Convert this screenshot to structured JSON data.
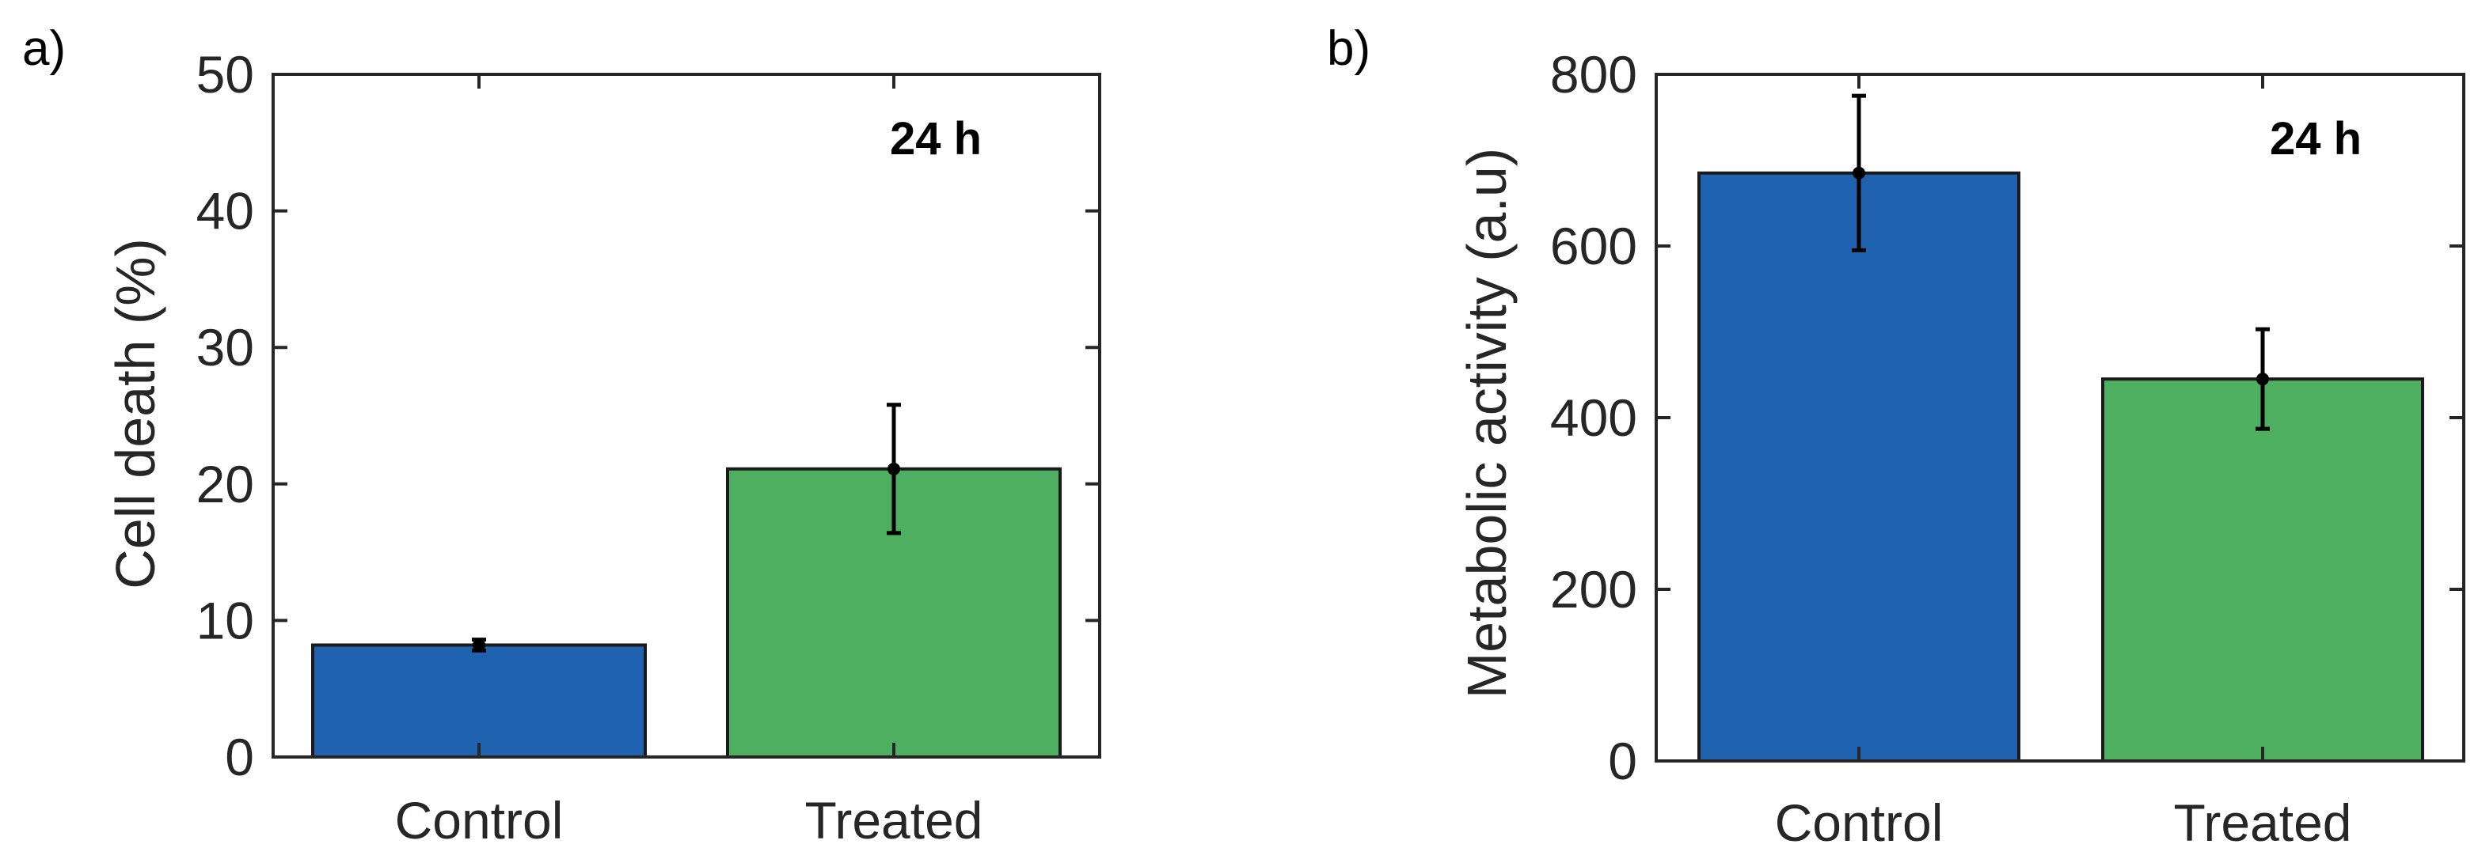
{
  "chart_data": [
    {
      "type": "bar",
      "panel_label": "a)",
      "categories": [
        "Control",
        "Treated"
      ],
      "values": [
        8.2,
        21.1
      ],
      "errors": [
        0.4,
        4.7
      ],
      "bar_colors": [
        "#1f63b0",
        "#4daf5f"
      ],
      "title": "",
      "annotation": "24 h",
      "xlabel": "",
      "ylabel": "Cell death (%)",
      "ylim": [
        0,
        50
      ],
      "yticks": [
        0,
        10,
        20,
        30,
        40,
        50
      ],
      "ytick_labels": [
        "0",
        "10",
        "20",
        "30",
        "40",
        "50"
      ],
      "grid": false
    },
    {
      "type": "bar",
      "panel_label": "b)",
      "categories": [
        "Control",
        "Treated"
      ],
      "values": [
        685,
        445
      ],
      "errors": [
        90,
        58
      ],
      "bar_colors": [
        "#1f63b0",
        "#4daf5f"
      ],
      "title": "",
      "annotation": "24 h",
      "xlabel": "",
      "ylabel": "Metabolic activity (a.u)",
      "ylim": [
        0,
        800
      ],
      "yticks": [
        0,
        200,
        400,
        600,
        800
      ],
      "ytick_labels": [
        "0",
        "200",
        "400",
        "600",
        "800"
      ],
      "grid": false
    }
  ]
}
